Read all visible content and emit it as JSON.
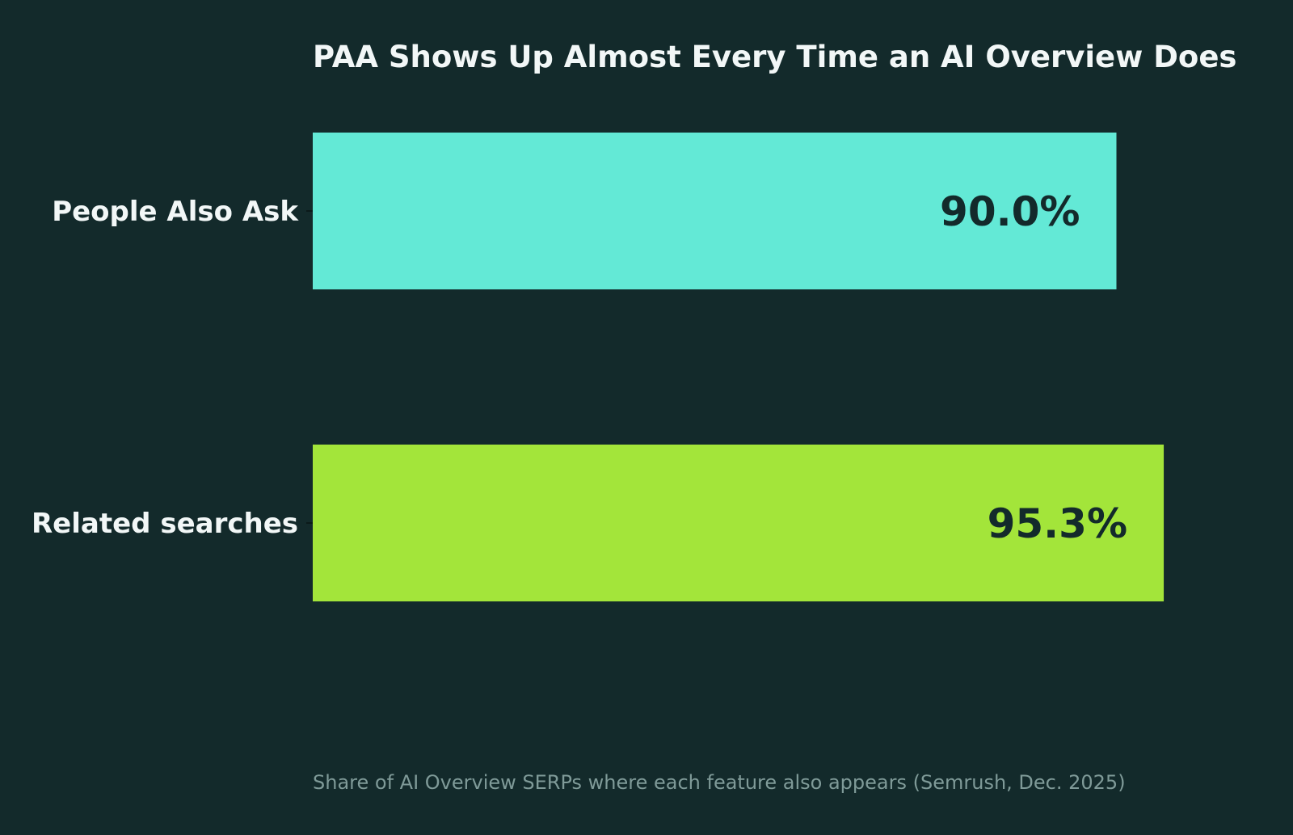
{
  "chart_data": {
    "type": "bar",
    "orientation": "horizontal",
    "title": "PAA Shows Up Almost Every Time an AI Overview Does",
    "categories": [
      "People Also Ask",
      "Related searches"
    ],
    "values": [
      90.0,
      95.3
    ],
    "value_labels": [
      "90.0%",
      "95.3%"
    ],
    "bar_colors": [
      "#63e9d6",
      "#a3e53a"
    ],
    "xlim": [
      0,
      100
    ],
    "grid": false,
    "legend": "none",
    "caption": "Share of AI Overview SERPs where each feature also appears (Semrush, Dec. 2025)"
  },
  "colors": {
    "background": "#132a2b",
    "title": "#f2f7f7",
    "category_label": "#f2f7f7",
    "value_label": "#132a2b",
    "caption": "#7f9a98",
    "tick": "#0b1a1a"
  }
}
